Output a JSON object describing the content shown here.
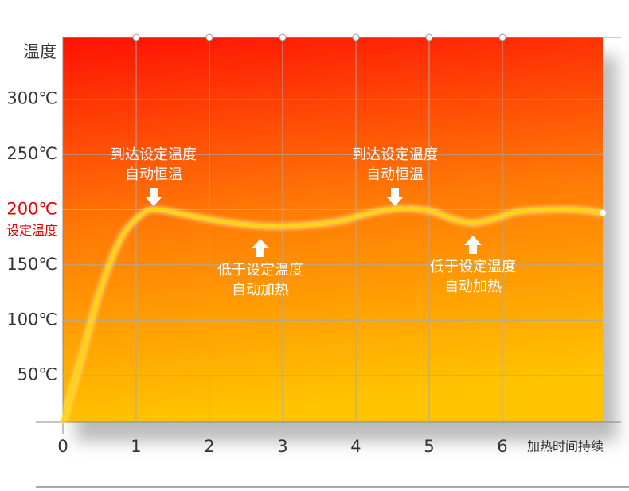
{
  "chart_data": {
    "type": "line",
    "y_axis_title": "温度",
    "x_axis_title": "加热时间持续",
    "setpoint_label": "设定温度",
    "xlim": [
      0,
      7.37
    ],
    "ylim": [
      8,
      356
    ],
    "xticks": [
      0,
      1,
      2,
      3,
      4,
      5,
      6
    ],
    "yticks": [
      {
        "value": 50,
        "label": "50℃"
      },
      {
        "value": 100,
        "label": "100℃"
      },
      {
        "value": 150,
        "label": "150℃"
      },
      {
        "value": 200,
        "label": "200℃"
      },
      {
        "value": 250,
        "label": "250℃"
      },
      {
        "value": 300,
        "label": "300℃"
      }
    ],
    "grid": true,
    "series": [
      {
        "color": "#ffd21a",
        "x": [
          0,
          0.25,
          0.5,
          0.8,
          1.1,
          1.3,
          1.7,
          2.2,
          2.8,
          3.3,
          3.8,
          4.2,
          4.6,
          5.0,
          5.3,
          5.6,
          5.9,
          6.2,
          6.6,
          7.0,
          7.37
        ],
        "values": [
          8,
          65,
          125,
          175,
          197,
          200,
          195,
          189,
          185,
          186,
          190,
          197,
          201,
          199,
          192,
          188,
          192,
          198,
          200,
          200,
          197
        ]
      }
    ],
    "annotations": [
      {
        "lines": [
          "到达设定温度",
          "自动恒温"
        ]
      },
      {
        "lines": [
          "低于设定温度",
          "自动加热"
        ]
      },
      {
        "lines": [
          "到达设定温度",
          "自动恒温"
        ]
      },
      {
        "lines": [
          "低于设定温度",
          "自动加热"
        ]
      }
    ]
  }
}
